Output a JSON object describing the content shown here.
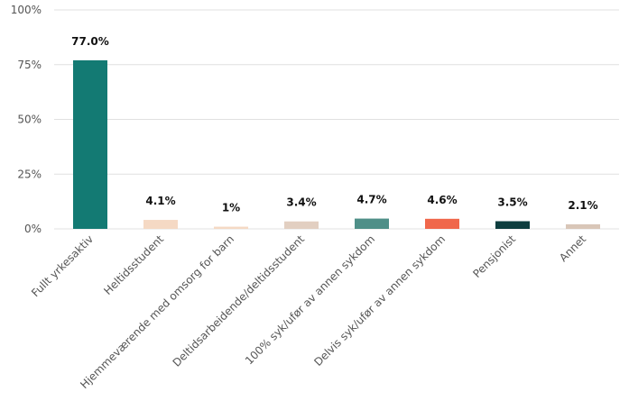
{
  "chart_data": {
    "type": "bar",
    "title": "",
    "xlabel": "",
    "ylabel": "",
    "ylim": [
      0,
      100
    ],
    "yticks": [
      "0%",
      "25%",
      "50%",
      "75%",
      "100%"
    ],
    "ytick_values": [
      0,
      25,
      50,
      75,
      100
    ],
    "grid": true,
    "categories": [
      "Fullt yrkesaktiv",
      "Heltidsstudent",
      "Hjemmeværende med omsorg for barn",
      "Deltidsarbeidende/deltidsstudent",
      "100% syk/ufør av annen sykdom",
      "Delvis syk/ufør av annen sykdom",
      "Pensjonist",
      "Annet"
    ],
    "values": [
      77.0,
      4.1,
      1,
      3.4,
      4.7,
      4.6,
      3.5,
      2.1
    ],
    "labels": [
      "77.0%",
      "4.1%",
      "1%",
      "3.4%",
      "4.7%",
      "4.6%",
      "3.5%",
      "2.1%"
    ],
    "colors": [
      "#137a73",
      "#f5d9c4",
      "#f5d9c4",
      "#e2cfc1",
      "#4f8f88",
      "#f0674b",
      "#0d3d3e",
      "#d9c6b8"
    ]
  }
}
